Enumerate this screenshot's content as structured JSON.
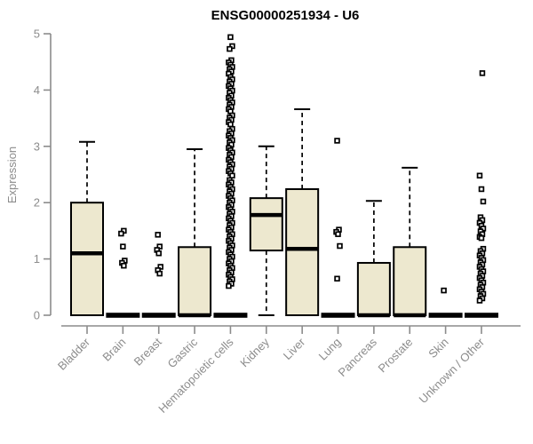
{
  "chart_data": {
    "type": "boxplot",
    "title": "ENSG00000251934 - U6",
    "ylabel": "Expression",
    "xlabel": "",
    "ylim": [
      0,
      5
    ],
    "yticks": [
      0,
      1,
      2,
      3,
      4,
      5
    ],
    "grid": false,
    "legend": "none",
    "categories": [
      "Bladder",
      "Brain",
      "Breast",
      "Gastric",
      "Hematopoietic cells",
      "Kidney",
      "Liver",
      "Lung",
      "Pancreas",
      "Prostate",
      "Skin",
      "Unknown / Other"
    ],
    "colors": {
      "box_fill": "#ede8cf",
      "box_border": "#000000",
      "median": "#000000",
      "whisker": "#000000",
      "outlier": "#000000",
      "axis": "#8c8c8c",
      "tick_label": "#8c8c8c",
      "title": "#000000",
      "background": "#ffffff"
    },
    "series": [
      {
        "name": "Bladder",
        "min": 0,
        "q1": 0,
        "median": 1.1,
        "q3": 2.0,
        "max": 3.08,
        "outliers": []
      },
      {
        "name": "Brain",
        "min": 0,
        "q1": 0,
        "median": 0,
        "q3": 0,
        "max": 0,
        "outliers": [
          1.5,
          1.45,
          1.22,
          0.97,
          0.93,
          0.88
        ]
      },
      {
        "name": "Breast",
        "min": 0,
        "q1": 0,
        "median": 0,
        "q3": 0,
        "max": 0,
        "outliers": [
          1.43,
          1.22,
          1.16,
          1.1,
          0.86,
          0.8,
          0.74
        ]
      },
      {
        "name": "Gastric",
        "min": 0,
        "q1": 0,
        "median": 0,
        "q3": 1.21,
        "max": 2.95,
        "outliers": []
      },
      {
        "name": "Hematopoietic cells",
        "min": 0,
        "q1": 0,
        "median": 0,
        "q3": 0,
        "max": 0,
        "outliers": [
          4.94,
          4.78,
          4.73,
          4.53,
          4.49,
          4.45,
          4.41,
          4.37,
          4.33,
          4.29,
          4.23,
          4.19,
          4.15,
          4.11,
          4.07,
          4.03,
          3.99,
          3.95,
          3.9,
          3.86,
          3.82,
          3.78,
          3.74,
          3.7,
          3.66,
          3.62,
          3.55,
          3.51,
          3.47,
          3.43,
          3.39,
          3.31,
          3.27,
          3.23,
          3.19,
          3.15,
          3.11,
          3.07,
          3.03,
          2.97,
          2.93,
          2.89,
          2.85,
          2.81,
          2.76,
          2.72,
          2.68,
          2.64,
          2.6,
          2.56,
          2.52,
          2.48,
          2.4,
          2.36,
          2.32,
          2.28,
          2.24,
          2.2,
          2.16,
          2.12,
          2.08,
          2.04,
          2.0,
          1.96,
          1.92,
          1.88,
          1.84,
          1.8,
          1.76,
          1.72,
          1.68,
          1.64,
          1.6,
          1.56,
          1.52,
          1.48,
          1.44,
          1.4,
          1.36,
          1.32,
          1.28,
          1.24,
          1.2,
          1.16,
          1.12,
          1.08,
          1.04,
          1.0,
          0.96,
          0.92,
          0.88,
          0.84,
          0.8,
          0.76,
          0.72,
          0.68,
          0.64,
          0.6,
          0.56,
          0.52
        ]
      },
      {
        "name": "Kidney",
        "min": 0,
        "q1": 1.15,
        "median": 1.78,
        "q3": 2.08,
        "max": 3.0,
        "outliers": []
      },
      {
        "name": "Liver",
        "min": 0,
        "q1": 0,
        "median": 1.18,
        "q3": 2.24,
        "max": 3.66,
        "outliers": []
      },
      {
        "name": "Lung",
        "min": 0,
        "q1": 0,
        "median": 0,
        "q3": 0,
        "max": 0,
        "outliers": [
          3.1,
          1.52,
          1.48,
          1.44,
          1.23,
          0.65
        ]
      },
      {
        "name": "Pancreas",
        "min": 0,
        "q1": 0,
        "median": 0,
        "q3": 0.93,
        "max": 2.03,
        "outliers": []
      },
      {
        "name": "Prostate",
        "min": 0,
        "q1": 0,
        "median": 0,
        "q3": 1.21,
        "max": 2.62,
        "outliers": []
      },
      {
        "name": "Skin",
        "min": 0,
        "q1": 0,
        "median": 0,
        "q3": 0,
        "max": 0,
        "outliers": [
          0.44
        ]
      },
      {
        "name": "Unknown / Other",
        "min": 0,
        "q1": 0,
        "median": 0,
        "q3": 0,
        "max": 0,
        "outliers": [
          4.3,
          2.48,
          2.24,
          2.02,
          1.74,
          1.69,
          1.64,
          1.59,
          1.54,
          1.49,
          1.44,
          1.39,
          1.37,
          1.18,
          1.14,
          1.1,
          1.06,
          1.02,
          0.98,
          0.94,
          0.9,
          0.86,
          0.82,
          0.78,
          0.74,
          0.7,
          0.66,
          0.62,
          0.58,
          0.54,
          0.5,
          0.46,
          0.42,
          0.38,
          0.34,
          0.3,
          0.26
        ]
      }
    ]
  }
}
